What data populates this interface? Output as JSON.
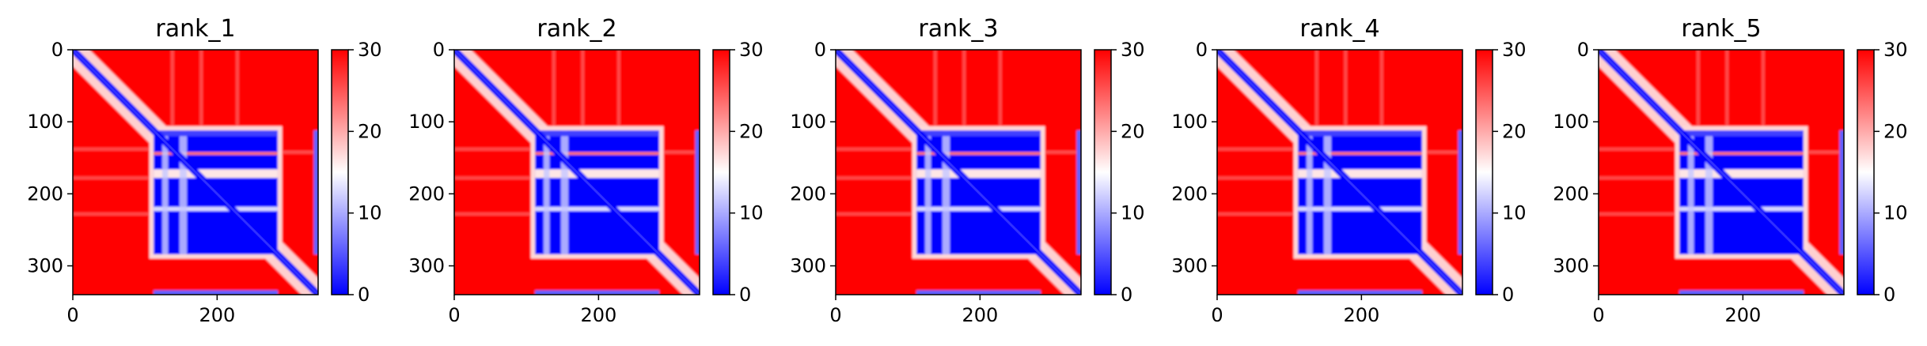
{
  "figure": {
    "colormap": [
      "#0000ff",
      "#ffffff",
      "#ff0000"
    ],
    "axis_color": "#000000"
  },
  "chart_data": [
    {
      "type": "heatmap",
      "title": "rank_1",
      "xticks": [
        "0",
        "200"
      ],
      "yticks": [
        "0",
        "100",
        "200",
        "300"
      ],
      "cbar_ticks": [
        "0",
        "10",
        "20",
        "30"
      ],
      "clim": [
        0,
        30
      ],
      "matrix_size": 340
    },
    {
      "type": "heatmap",
      "title": "rank_2",
      "xticks": [
        "0",
        "200"
      ],
      "yticks": [
        "0",
        "100",
        "200",
        "300"
      ],
      "cbar_ticks": [
        "0",
        "10",
        "20",
        "30"
      ],
      "clim": [
        0,
        30
      ],
      "matrix_size": 340
    },
    {
      "type": "heatmap",
      "title": "rank_3",
      "xticks": [
        "0",
        "200"
      ],
      "yticks": [
        "0",
        "100",
        "200",
        "300"
      ],
      "cbar_ticks": [
        "0",
        "10",
        "20",
        "30"
      ],
      "clim": [
        0,
        30
      ],
      "matrix_size": 340
    },
    {
      "type": "heatmap",
      "title": "rank_4",
      "xticks": [
        "0",
        "200"
      ],
      "yticks": [
        "0",
        "100",
        "200",
        "300"
      ],
      "cbar_ticks": [
        "0",
        "10",
        "20",
        "30"
      ],
      "clim": [
        0,
        30
      ],
      "matrix_size": 340
    },
    {
      "type": "heatmap",
      "title": "rank_5",
      "xticks": [
        "0",
        "200"
      ],
      "yticks": [
        "0",
        "100",
        "200",
        "300"
      ],
      "cbar_ticks": [
        "0",
        "10",
        "20",
        "30"
      ],
      "clim": [
        0,
        30
      ],
      "matrix_size": 340
    }
  ]
}
